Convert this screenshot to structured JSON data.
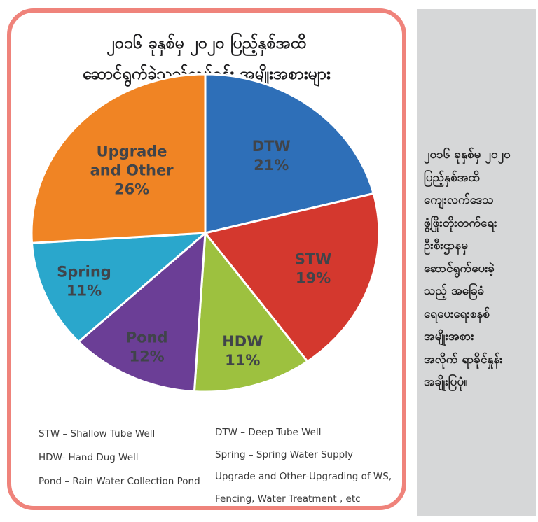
{
  "chart_data": {
    "type": "pie",
    "title_lines": [
      "၂၀၁၆ ခုနှစ်မှ ၂၀၂၀ ပြည့်နှစ်အထိ",
      "ဆောင်ရွက်ခဲ့သည့်လုပ်ငန်း အမျိုးအစားများ"
    ],
    "direction": "clockwise",
    "start_angle_deg": 0,
    "slices": [
      {
        "label": "DTW",
        "value": 21,
        "color": "#2E6FB8"
      },
      {
        "label": "STW",
        "value": 19,
        "color": "#D4382E"
      },
      {
        "label": "HDW",
        "value": 11,
        "color": "#9DC13F"
      },
      {
        "label": "Pond",
        "value": 12,
        "color": "#6B3E96"
      },
      {
        "label": "Spring",
        "value": 11,
        "color": "#2AA7CC"
      },
      {
        "label": "Upgrade\nand Other",
        "value": 26,
        "color": "#F08424"
      }
    ],
    "slice_label_format": "{label}\n{value}%",
    "legend_position": "bottom"
  },
  "legend": {
    "left": [
      "STW – Shallow Tube Well",
      "HDW- Hand Dug Well",
      "Pond – Rain Water Collection Pond"
    ],
    "right": [
      "DTW – Deep Tube Well",
      "Spring – Spring Water Supply",
      "Upgrade and Other-Upgrading of WS,",
      "Fencing, Water Treatment , etc"
    ]
  },
  "sidebar": {
    "lines": [
      "၂၀၁၆ ခုနှစ်မှ ၂၀၂၀",
      "ပြည့်နှစ်အထိ",
      "ကျေးလက်ဒေသ",
      "ဖွံ့ဖြိုးတိုးတက်ရေး",
      "ဦးစီးဌာနမှ",
      "ဆောင်ရွက်ပေးခဲ့",
      "သည့်  အခြေခံ",
      "ရေပေးရေးစနစ်",
      "အမျိုးအစား",
      "အလိုက် ရာခိုင်နှုန်း",
      "အချိုးပြပုံ။"
    ],
    "background": "#D6D7D8"
  },
  "colors": {
    "card_border": "#EF837B",
    "title_text": "#1c1c1e",
    "slice_label_text": "#40444a",
    "legend_text": "#3a3a3a",
    "sidebar_background": "#D6D7D8",
    "sidebar_text": "#1e1e1e"
  }
}
